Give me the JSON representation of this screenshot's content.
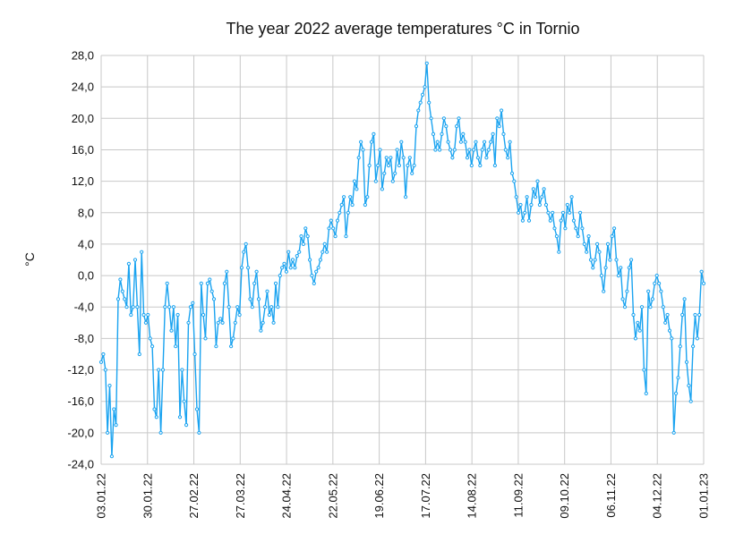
{
  "chart_data": {
    "type": "line",
    "title": "The year 2022 average temperatures °C in Tornio",
    "xlabel": "",
    "ylabel": "°C",
    "ylim": [
      -24,
      28
    ],
    "yticks": [
      "28,0",
      "24,0",
      "20,0",
      "16,0",
      "12,0",
      "8,0",
      "4,0",
      "0,0",
      "-4,0",
      "-8,0",
      "-12,0",
      "-16,0",
      "-20,0",
      "-24,0"
    ],
    "xticks": [
      "03.01.22",
      "30.01.22",
      "27.02.22",
      "27.03.22",
      "24.04.22",
      "22.05.22",
      "19.06.22",
      "17.07.22",
      "14.08.22",
      "11.09.22",
      "09.10.22",
      "06.11.22",
      "04.12.22",
      "01.01.23"
    ],
    "grid": true,
    "line_color": "#1aa3f0",
    "series": [
      {
        "values": [
          -11,
          -10,
          -12,
          -20,
          -14,
          -23,
          -17,
          -19,
          -3,
          -0.5,
          -2,
          -3,
          -4,
          1.5,
          -5,
          -4,
          2,
          -4,
          -10,
          3,
          -5,
          -6,
          -5,
          -8,
          -9,
          -17,
          -18,
          -12,
          -20,
          -12,
          -4,
          -1,
          -4,
          -7,
          -4,
          -9,
          -5,
          -18,
          -12,
          -16,
          -19,
          -6,
          -4,
          -3.5,
          -10,
          -17,
          -20,
          -1,
          -5,
          -8,
          -1,
          -0.5,
          -2,
          -3,
          -9,
          -6,
          -5.5,
          -6,
          -1,
          0.5,
          -4,
          -9,
          -8,
          -6,
          -4,
          -5,
          1,
          3,
          4,
          1,
          -3,
          -4,
          -1,
          0.5,
          -3,
          -7,
          -6,
          -4,
          -2,
          -5,
          -4,
          -6,
          -1,
          -4,
          0,
          1,
          1.5,
          0.5,
          3,
          1,
          2,
          1,
          2.5,
          3,
          5,
          4,
          6,
          5,
          2,
          0,
          -1,
          0.5,
          1,
          2,
          3,
          4,
          3,
          6,
          7,
          6,
          5,
          7,
          8,
          9,
          10,
          5,
          8,
          10,
          9,
          12,
          11,
          15,
          17,
          16,
          9,
          10,
          14,
          17,
          18,
          12,
          14,
          16,
          11,
          13,
          15,
          14,
          15,
          12,
          13,
          16,
          14,
          17,
          15,
          10,
          14,
          15,
          13,
          14,
          19,
          21,
          22,
          23,
          24,
          27,
          22,
          20,
          18,
          16,
          17,
          16,
          18,
          20,
          19,
          17,
          16,
          15,
          16,
          19,
          20,
          17,
          18,
          17,
          15,
          16,
          14,
          16,
          17,
          15,
          14,
          16,
          17,
          15,
          16,
          17,
          18,
          14,
          20,
          19,
          21,
          18,
          16,
          15,
          17,
          13,
          12,
          10,
          8,
          9,
          7,
          8,
          10,
          7,
          9,
          11,
          10,
          12,
          9,
          10,
          11,
          9,
          8,
          7,
          8,
          6,
          5,
          3,
          7,
          8,
          6,
          9,
          8,
          10,
          7,
          6,
          5,
          8,
          6,
          4,
          3,
          5,
          2,
          1,
          2,
          4,
          3,
          0,
          -2,
          1,
          4,
          2,
          5,
          6,
          2,
          0,
          1,
          -3,
          -4,
          -2,
          1,
          2,
          -5,
          -8,
          -6,
          -7,
          -4,
          -12,
          -15,
          -2,
          -4,
          -3,
          -1,
          0,
          -1,
          -2,
          -4,
          -6,
          -5,
          -7,
          -8,
          -20,
          -15,
          -13,
          -9,
          -5,
          -3,
          -11,
          -14,
          -16,
          -9,
          -5,
          -8,
          -5,
          0.5,
          -1
        ]
      }
    ]
  }
}
